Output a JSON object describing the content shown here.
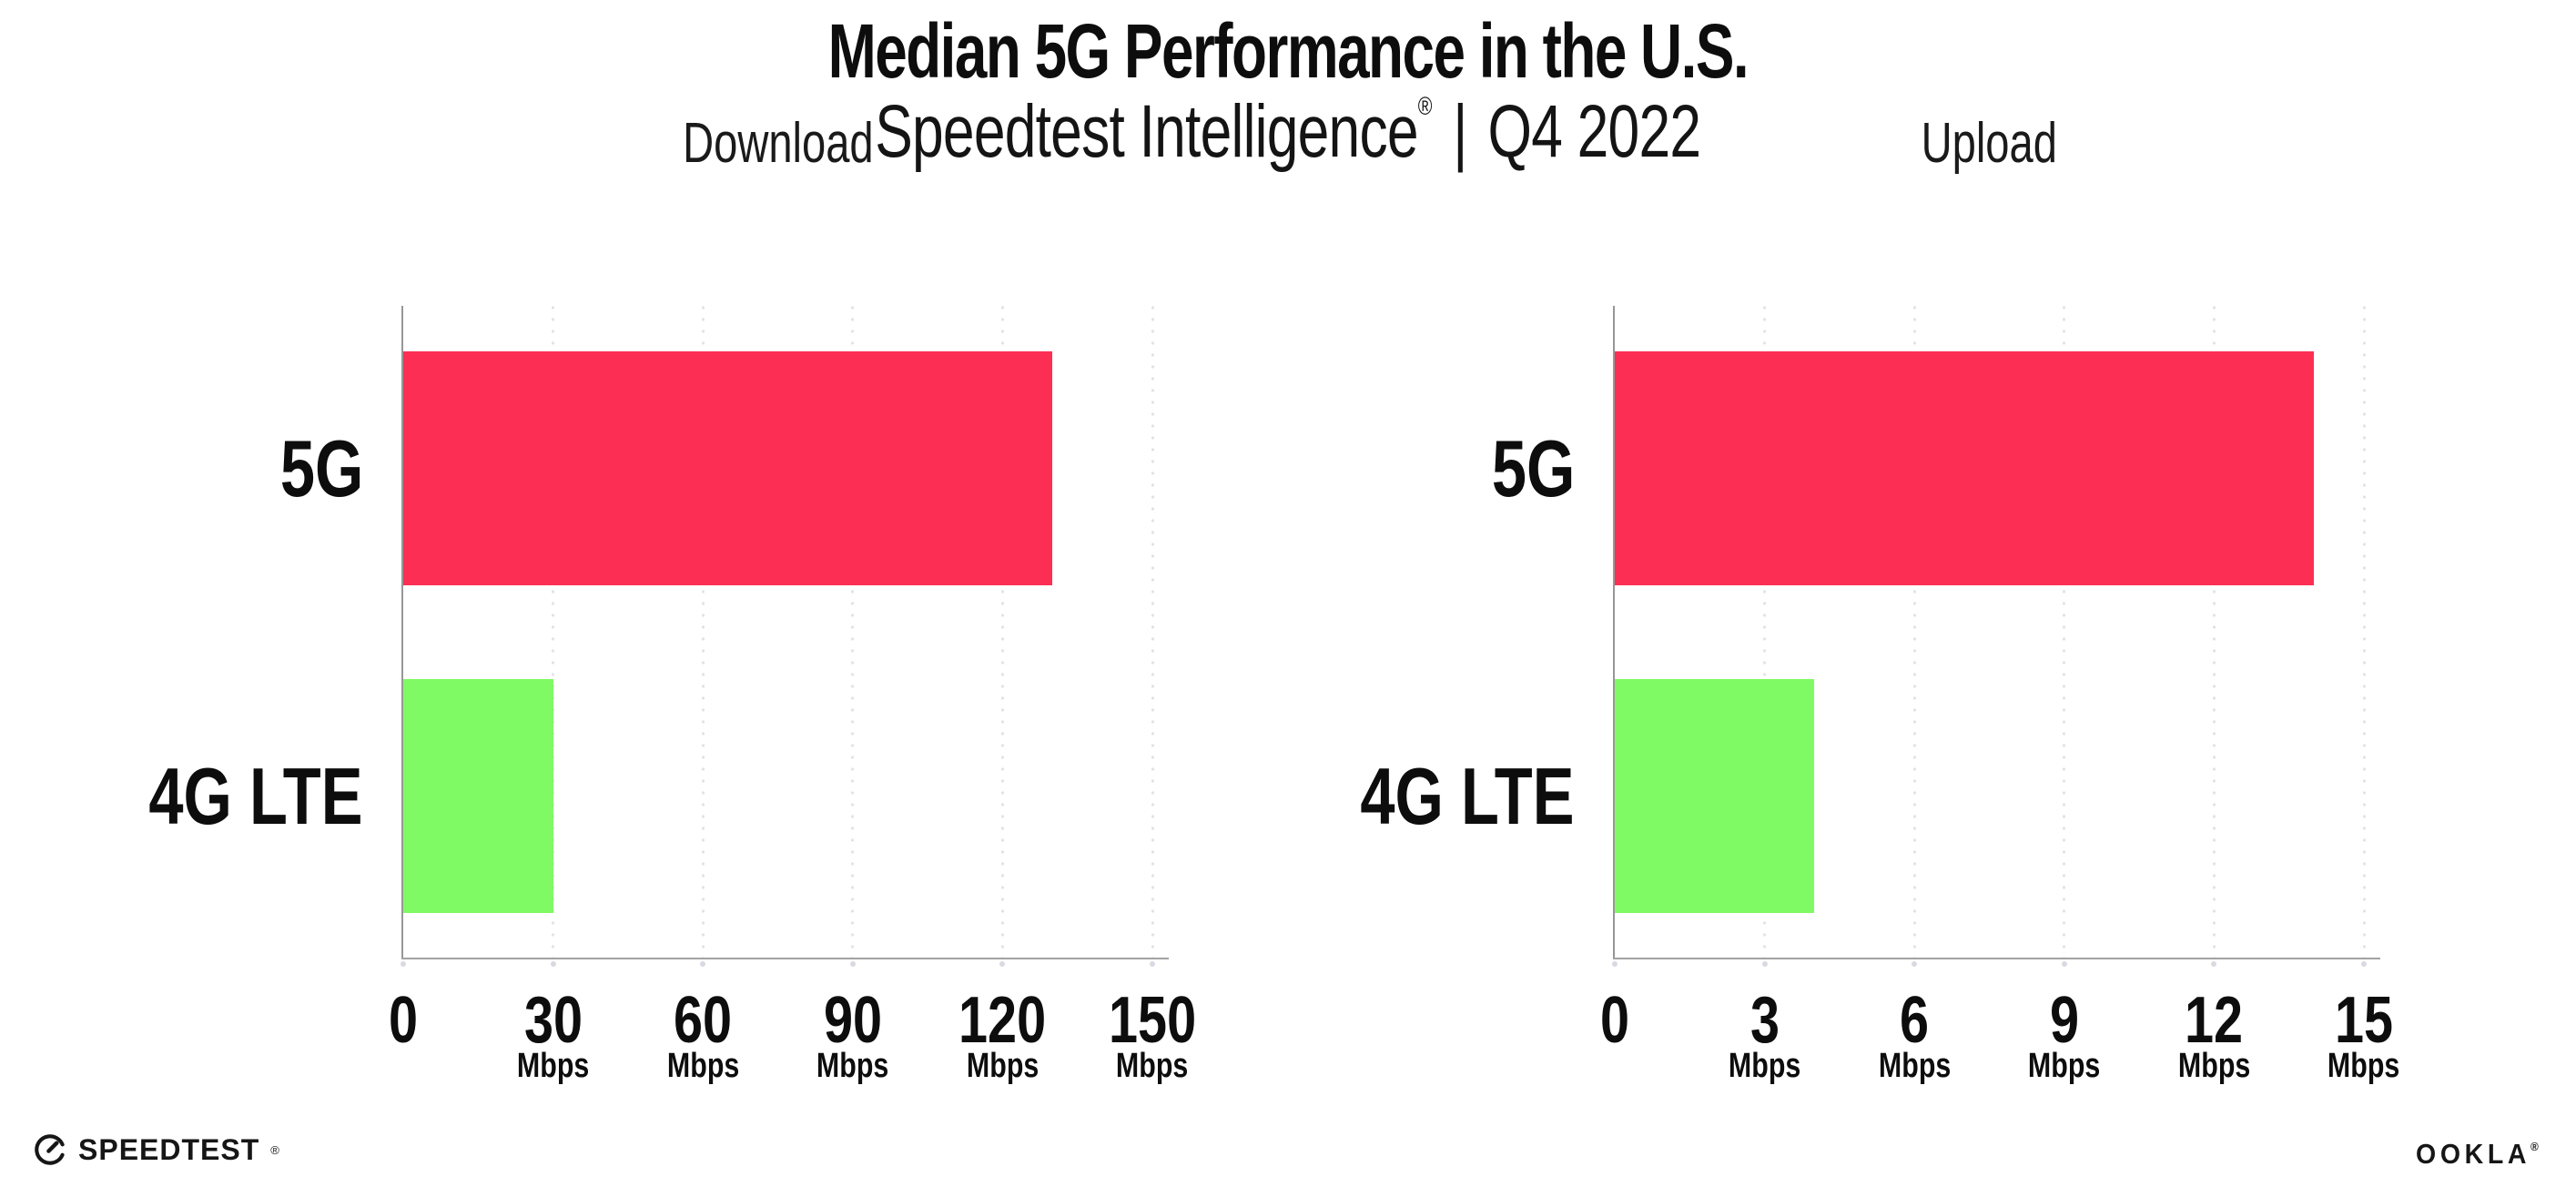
{
  "header": {
    "title": "Median 5G Performance in the U.S.",
    "subtitle_brand": "Speedtest Intelligence",
    "subtitle_registered": "®",
    "subtitle_divider": "|",
    "subtitle_period": "Q4 2022"
  },
  "colors": {
    "bar_5g": "#fc2e54",
    "bar_4g_lte": "#80fa64",
    "axis_line": "#9b9b9b",
    "gridline_dots": "#e2e2ec",
    "tick_dot": "#d9d9e2",
    "text": "#111111",
    "background": "#ffffff"
  },
  "chart_data": [
    {
      "type": "bar",
      "orientation": "horizontal",
      "title": "Download",
      "categories": [
        "5G",
        "4G LTE"
      ],
      "values": [
        130,
        30
      ],
      "value_unit": "Mbps",
      "series_colors": [
        "#fc2e54",
        "#80fa64"
      ],
      "xlim": [
        0,
        150
      ],
      "xticks": [
        {
          "label": "0",
          "unit": ""
        },
        {
          "label": "30",
          "unit": "Mbps"
        },
        {
          "label": "60",
          "unit": "Mbps"
        },
        {
          "label": "90",
          "unit": "Mbps"
        },
        {
          "label": "120",
          "unit": "Mbps"
        },
        {
          "label": "150",
          "unit": "Mbps"
        }
      ],
      "grid": "vertical-dotted",
      "legend": "none"
    },
    {
      "type": "bar",
      "orientation": "horizontal",
      "title": "Upload",
      "categories": [
        "5G",
        "4G LTE"
      ],
      "values": [
        14,
        4
      ],
      "value_unit": "Mbps",
      "series_colors": [
        "#fc2e54",
        "#80fa64"
      ],
      "xlim": [
        0,
        15
      ],
      "xticks": [
        {
          "label": "0",
          "unit": ""
        },
        {
          "label": "3",
          "unit": "Mbps"
        },
        {
          "label": "6",
          "unit": "Mbps"
        },
        {
          "label": "9",
          "unit": "Mbps"
        },
        {
          "label": "12",
          "unit": "Mbps"
        },
        {
          "label": "15",
          "unit": "Mbps"
        }
      ],
      "grid": "vertical-dotted",
      "legend": "none"
    }
  ],
  "footer": {
    "speedtest": "SPEEDTEST",
    "speedtest_mark": "®",
    "ookla": "OOKLA",
    "ookla_mark": "®"
  }
}
